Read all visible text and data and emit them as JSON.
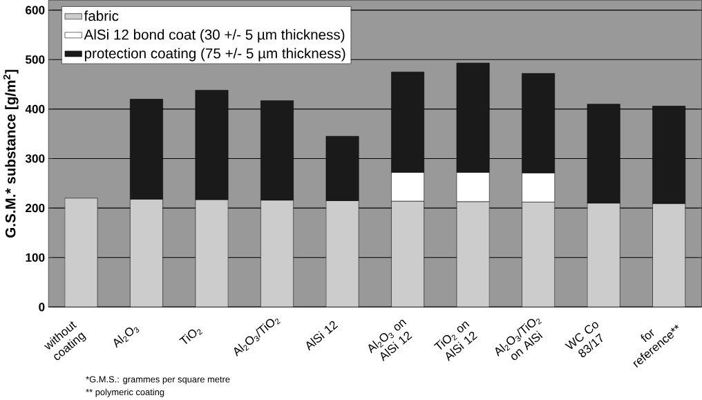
{
  "chart_data": {
    "type": "bar",
    "stacked": true,
    "ylabel": "G.S.M.* substance  [g/m$^{2}$]",
    "categories": [
      "without coating",
      "Al$_{2}$O$_{3}$",
      "TiO$_{2}$",
      "Al$_{2}$O$_{3}$/TiO$_{2}$",
      "AlSi 12",
      "Al$_{2}$O$_{3}$ on AlSi 12",
      "TiO$_{2}$ on AlSi 12",
      "Al$_{2}$O$_{3}$/TiO$_{2}$ on AlSi",
      "WC Co 83/17",
      "for reference**"
    ],
    "series": [
      {
        "name": "fabric",
        "color": "#cccccc",
        "values": [
          220,
          218,
          217,
          216,
          215,
          214,
          213,
          212,
          210,
          209
        ]
      },
      {
        "name": "AlSi 12 bond coat (30 +/- 5 µm thickness)",
        "color": "#ffffff",
        "values": [
          null,
          null,
          null,
          null,
          null,
          58,
          59,
          59,
          null,
          null
        ]
      },
      {
        "name": "protection coating (75 +/- 5 µm thickness)",
        "color": "#1a1a1a",
        "values": [
          null,
          202,
          221,
          201,
          130,
          203,
          221,
          201,
          200,
          197
        ]
      }
    ],
    "ylim": [
      0,
      620
    ],
    "yticks": [
      0,
      100,
      200,
      300,
      400,
      500,
      600
    ],
    "grid": "y",
    "legend": "top left",
    "annotations": [
      "*G.M.S.: grammes per square metre",
      "** polymeric coating"
    ]
  }
}
